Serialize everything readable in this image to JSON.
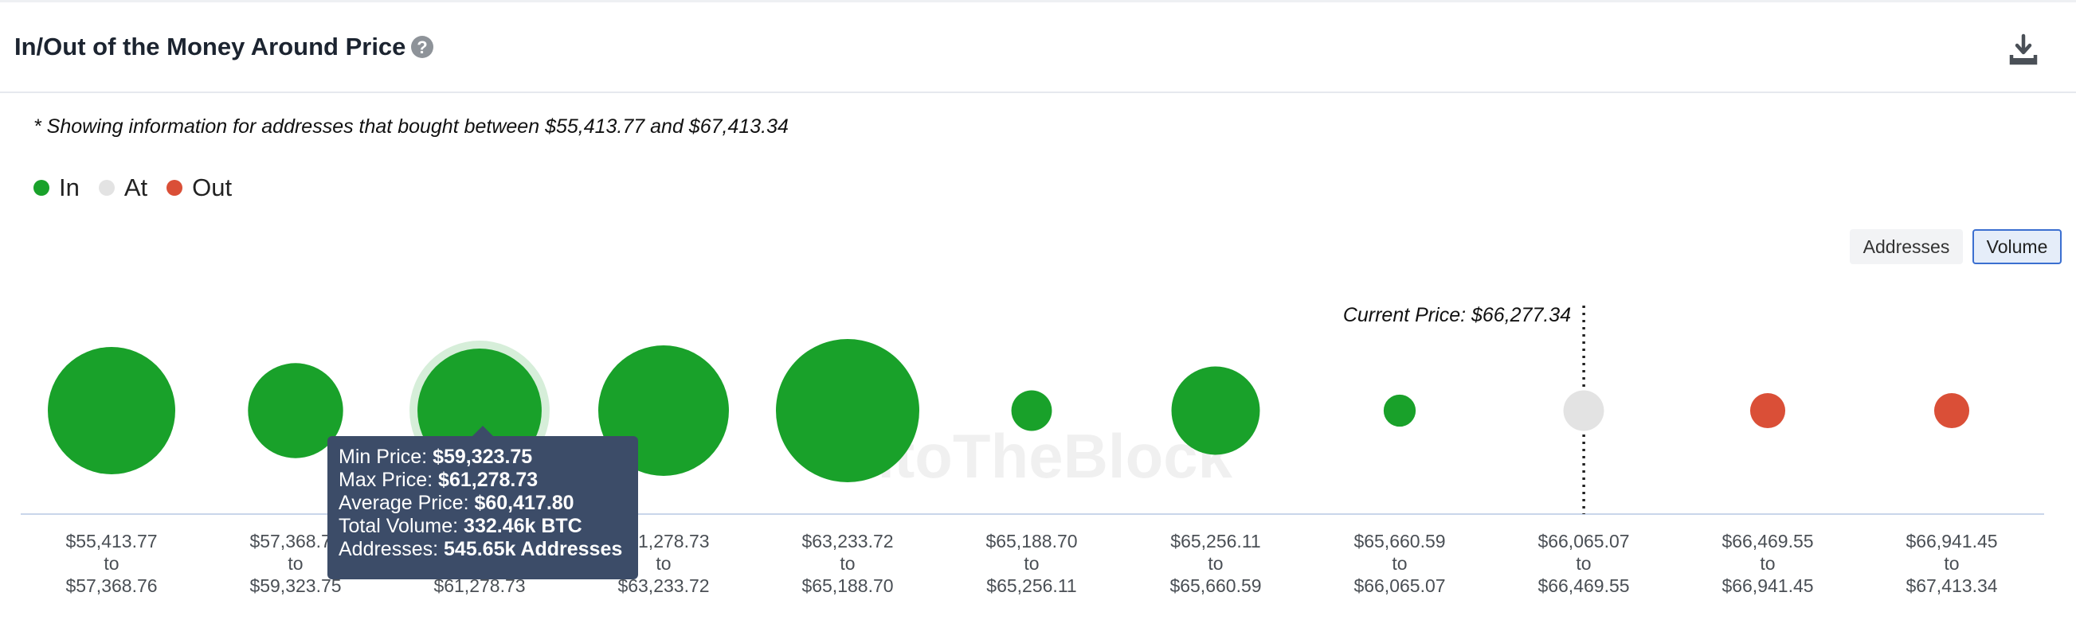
{
  "header": {
    "title": "In/Out of the Money Around Price",
    "help_glyph": "?",
    "download_icon": "download-icon"
  },
  "note": "* Showing information for addresses that bought between $55,413.77 and $67,413.34",
  "legend": [
    {
      "label": "In",
      "color": "#19a12a"
    },
    {
      "label": "At",
      "color": "#e3e3e3"
    },
    {
      "label": "Out",
      "color": "#da4f37"
    }
  ],
  "toggle": {
    "addresses_label": "Addresses",
    "volume_label": "Volume",
    "active": "Volume"
  },
  "watermark": "IntoTheBlock",
  "tooltip": {
    "min_label": "Min Price:",
    "min_value": "$59,323.75",
    "max_label": "Max Price:",
    "max_value": "$61,278.73",
    "avg_label": "Average Price:",
    "avg_value": "$60,417.80",
    "vol_label": "Total Volume:",
    "vol_value": "332.46k BTC",
    "addr_label": "Addresses:",
    "addr_value": "545.65k Addresses"
  },
  "chart_data": {
    "type": "bubble",
    "metric": "Volume",
    "current_price_label": "Current Price: $66,277.34",
    "current_price": 66277.34,
    "categories": [
      {
        "from": "$55,413.77",
        "to_word": "to",
        "to": "$57,368.76",
        "status": "In",
        "relative_volume": 0.79
      },
      {
        "from": "$57,368.76",
        "to_word": "to",
        "to": "$59,323.75",
        "status": "In",
        "relative_volume": 0.44
      },
      {
        "from": "$59,323.75",
        "to_word": "to",
        "to": "$61,278.73",
        "status": "In",
        "relative_volume": 0.75
      },
      {
        "from": "$61,278.73",
        "to_word": "to",
        "to": "$63,233.72",
        "status": "In",
        "relative_volume": 0.83
      },
      {
        "from": "$63,233.72",
        "to_word": "to",
        "to": "$65,188.70",
        "status": "In",
        "relative_volume": 1.0
      },
      {
        "from": "$65,188.70",
        "to_word": "to",
        "to": "$65,256.11",
        "status": "In",
        "relative_volume": 0.08
      },
      {
        "from": "$65,256.11",
        "to_word": "to",
        "to": "$65,660.59",
        "status": "In",
        "relative_volume": 0.38
      },
      {
        "from": "$65,660.59",
        "to_word": "to",
        "to": "$66,065.07",
        "status": "In",
        "relative_volume": 0.05
      },
      {
        "from": "$66,065.07",
        "to_word": "to",
        "to": "$66,469.55",
        "status": "At",
        "relative_volume": 0.08
      },
      {
        "from": "$66,469.55",
        "to_word": "to",
        "to": "$66,941.45",
        "status": "Out",
        "relative_volume": 0.06
      },
      {
        "from": "$66,941.45",
        "to_word": "to",
        "to": "$67,413.34",
        "status": "Out",
        "relative_volume": 0.06
      }
    ],
    "highlighted_index": 2
  }
}
